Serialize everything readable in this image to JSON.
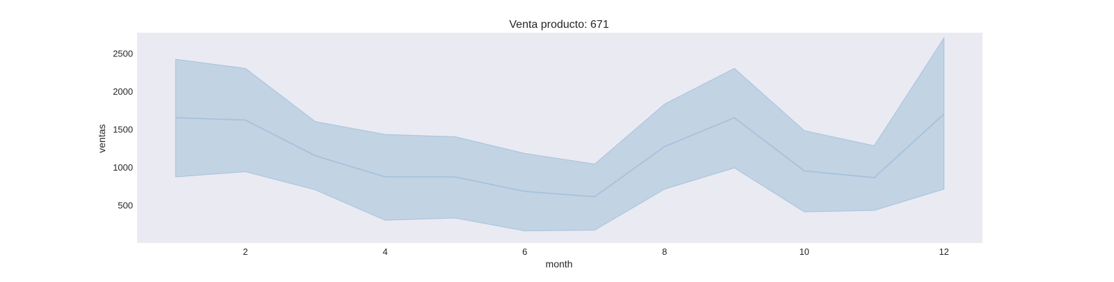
{
  "chart_data": {
    "type": "line",
    "title": "Venta producto: 671",
    "xlabel": "month",
    "ylabel": "ventas",
    "xlim": [
      0.45,
      12.55
    ],
    "ylim": [
      0,
      2770
    ],
    "xticks": [
      2,
      4,
      6,
      8,
      10,
      12
    ],
    "yticks": [
      500,
      1000,
      1500,
      2000,
      2500
    ],
    "grid": false,
    "colors": {
      "background": "#EAEAF2",
      "line": "#a6c2dc",
      "band": "#c2d3e4"
    },
    "series": [
      {
        "x": [
          1,
          2,
          3,
          4,
          5,
          6,
          7,
          8,
          9,
          10,
          11,
          12
        ],
        "values": [
          1650,
          1620,
          1150,
          870,
          870,
          680,
          610,
          1270,
          1650,
          950,
          860,
          1700
        ],
        "ci_upper": [
          2420,
          2300,
          1600,
          1430,
          1400,
          1180,
          1040,
          1830,
          2300,
          1480,
          1280,
          2700
        ],
        "ci_lower": [
          870,
          940,
          700,
          300,
          330,
          160,
          170,
          710,
          990,
          410,
          430,
          710
        ]
      }
    ]
  }
}
